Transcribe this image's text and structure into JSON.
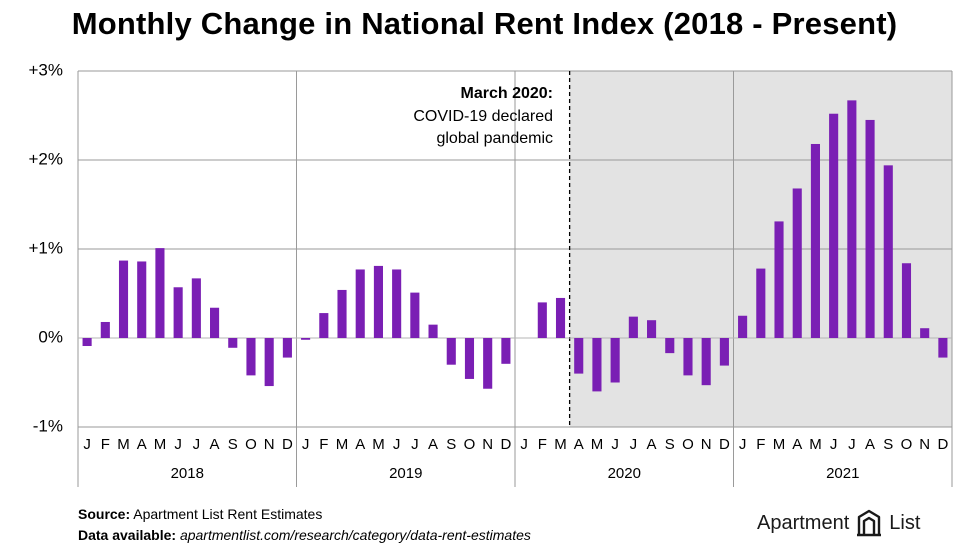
{
  "title": "Monthly Change in National Rent Index (2018 - Present)",
  "annotation": {
    "title": "March 2020:",
    "lines": [
      "COVID-19 declared",
      "global pandemic"
    ]
  },
  "footer": {
    "source_label": "Source:",
    "source_text": "Apartment List Rent Estimates",
    "data_label": "Data available:",
    "data_text": "apartmentlist.com/research/category/data-rent-estimates"
  },
  "logo": {
    "word1": "Apartment",
    "word2": "List",
    "icon": "apartment-list-logo-icon"
  },
  "colors": {
    "bar": "#7a1fb4",
    "shade": "#e3e3e3",
    "grid": "#9a9a9a"
  },
  "chart_data": {
    "type": "bar",
    "title": "Monthly Change in National Rent Index (2018 - Present)",
    "xlabel": "",
    "ylabel": "",
    "ylim": [
      -1,
      3
    ],
    "y_ticks": [
      "-1%",
      "0%",
      "+1%",
      "+2%",
      "+3%"
    ],
    "y_tick_values": [
      -1,
      0,
      1,
      2,
      3
    ],
    "grid": true,
    "legend": "none",
    "month_labels": [
      "J",
      "F",
      "M",
      "A",
      "M",
      "J",
      "J",
      "A",
      "S",
      "O",
      "N",
      "D"
    ],
    "years": [
      "2018",
      "2019",
      "2020",
      "2021"
    ],
    "shaded_from": "March 2020",
    "values": [
      [
        -0.09,
        0.18,
        0.87,
        0.86,
        1.01,
        0.57,
        0.67,
        0.34,
        -0.11,
        -0.42,
        -0.54,
        -0.22
      ],
      [
        -0.02,
        0.28,
        0.54,
        0.77,
        0.81,
        0.77,
        0.51,
        0.15,
        -0.3,
        -0.46,
        -0.57,
        -0.29
      ],
      [
        null,
        0.4,
        0.45,
        -0.4,
        -0.6,
        -0.5,
        0.24,
        0.2,
        -0.17,
        -0.42,
        -0.53,
        -0.31
      ],
      [
        0.25,
        0.78,
        1.31,
        1.68,
        2.18,
        2.52,
        2.67,
        2.45,
        1.94,
        0.84,
        0.11,
        -0.22
      ]
    ]
  }
}
